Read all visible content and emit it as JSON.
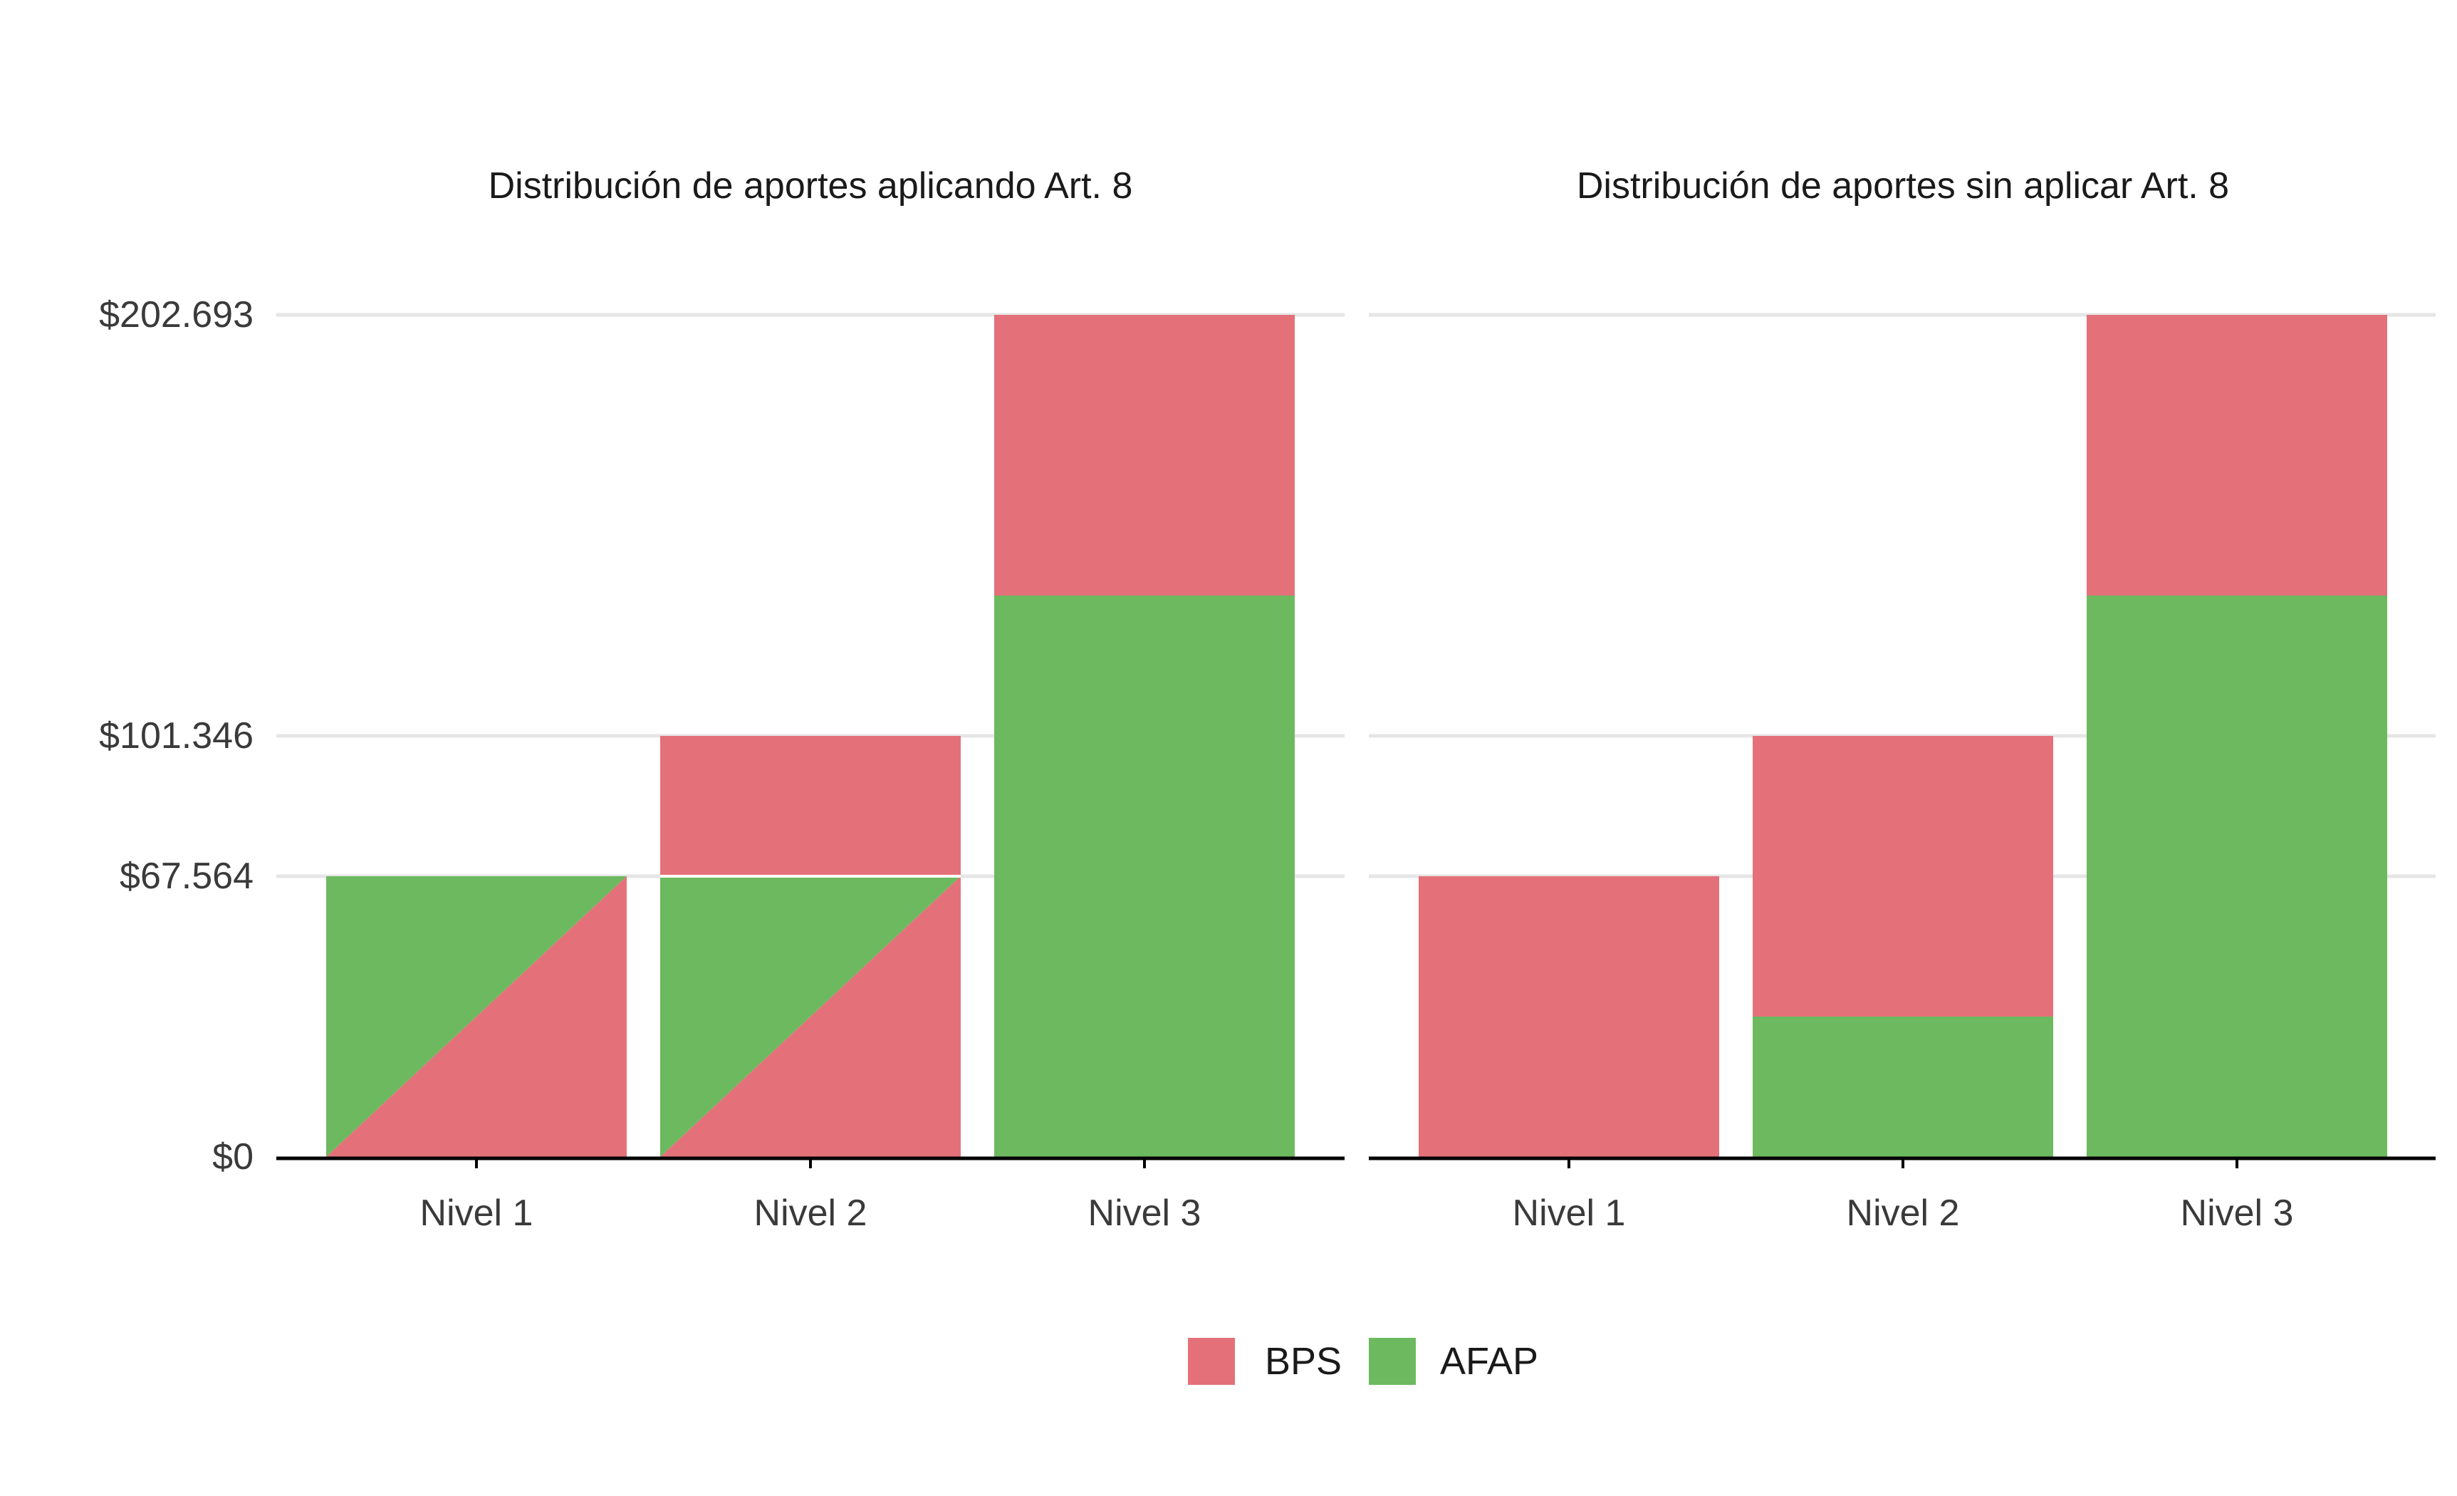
{
  "chart_data": {
    "type": "bar",
    "stacked": true,
    "colors": {
      "BPS": "#e4717a",
      "AFAP": "#6db95f",
      "grid": "#e6e6e6",
      "axis": "#000000",
      "separator": "#ffffff"
    },
    "y_ticks": [
      {
        "value": 0,
        "label": "$0"
      },
      {
        "value": 67564,
        "label": "$67.564"
      },
      {
        "value": 101346,
        "label": "$101.346"
      },
      {
        "value": 202693,
        "label": "$202.693"
      }
    ],
    "ylim": [
      0,
      202693
    ],
    "categories": [
      "Nivel 1",
      "Nivel 2",
      "Nivel 3"
    ],
    "panels": [
      {
        "title": "Distribución de aportes aplicando Art. 8",
        "bars": [
          {
            "category": "Nivel 1",
            "total": 67564,
            "split": "diagonal",
            "diagonal_top": 67564,
            "upper": null
          },
          {
            "category": "Nivel 2",
            "total": 101346,
            "split": "diagonal",
            "diagonal_top": 67564,
            "upper": {
              "series": "BPS",
              "from": 67564,
              "to": 101346
            }
          },
          {
            "category": "Nivel 3",
            "total": 202693,
            "split": "stack",
            "segments": [
              {
                "series": "AFAP",
                "value": 135129
              },
              {
                "series": "BPS",
                "value": 67564
              }
            ]
          }
        ]
      },
      {
        "title": "Distribución de aportes sin aplicar Art. 8",
        "bars": [
          {
            "category": "Nivel 1",
            "total": 67564,
            "split": "stack",
            "segments": [
              {
                "series": "BPS",
                "value": 67564
              }
            ]
          },
          {
            "category": "Nivel 2",
            "total": 101346,
            "split": "stack",
            "segments": [
              {
                "series": "AFAP",
                "value": 33782
              },
              {
                "series": "BPS",
                "value": 67564
              }
            ]
          },
          {
            "category": "Nivel 3",
            "total": 202693,
            "split": "stack",
            "segments": [
              {
                "series": "AFAP",
                "value": 135129
              },
              {
                "series": "BPS",
                "value": 67564
              }
            ]
          }
        ]
      }
    ],
    "legend": {
      "position": "bottom",
      "items": [
        {
          "series": "BPS",
          "label": "BPS"
        },
        {
          "series": "AFAP",
          "label": "AFAP"
        }
      ]
    }
  }
}
